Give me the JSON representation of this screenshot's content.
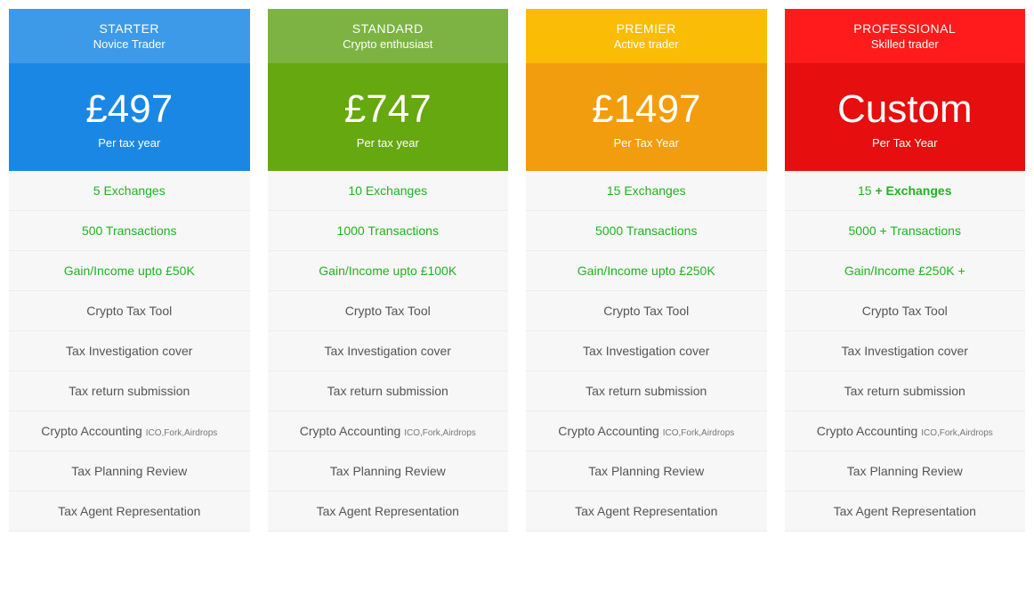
{
  "plans": [
    {
      "key": "starter",
      "title": "STARTER",
      "subtitle": "Novice  Trader",
      "price": "£497",
      "period": "Per tax year",
      "header_bg": "#3d9ae8",
      "price_bg": "#1b87e5",
      "features": [
        {
          "text": "5 Exchanges",
          "highlight": true
        },
        {
          "text": "500 Transactions",
          "highlight": true
        },
        {
          "text": "Gain/Income upto £50K",
          "highlight": true
        },
        {
          "text": "Crypto Tax Tool",
          "highlight": false
        },
        {
          "text": "Tax Investigation cover",
          "highlight": false
        },
        {
          "text": "Tax return submission",
          "highlight": false
        },
        {
          "text": "Crypto Accounting ",
          "sub": "ICO,Fork,Airdrops",
          "highlight": false
        },
        {
          "text": "Tax Planning Review",
          "highlight": false
        },
        {
          "text": "Tax Agent Representation",
          "highlight": false
        }
      ]
    },
    {
      "key": "standard",
      "title": "STANDARD",
      "subtitle": "Crypto enthusiast",
      "price": "£747",
      "period": "Per tax year",
      "header_bg": "#7cb342",
      "price_bg": "#66a80f",
      "features": [
        {
          "text": "10 Exchanges",
          "highlight": true
        },
        {
          "text": "1000 Transactions",
          "highlight": true
        },
        {
          "text": "Gain/Income upto £100K",
          "highlight": true
        },
        {
          "text": "Crypto Tax Tool",
          "highlight": false
        },
        {
          "text": "Tax Investigation cover",
          "highlight": false
        },
        {
          "text": "Tax return submission",
          "highlight": false
        },
        {
          "text": "Crypto Accounting ",
          "sub": "ICO,Fork,Airdrops",
          "highlight": false
        },
        {
          "text": "Tax Planning Review",
          "highlight": false
        },
        {
          "text": "Tax Agent Representation",
          "highlight": false
        }
      ]
    },
    {
      "key": "premier",
      "title": "PREMIER",
      "subtitle": "Active trader",
      "price": "£1497",
      "period": "Per Tax Year",
      "header_bg": "#fbbc05",
      "price_bg": "#f29d0d",
      "features": [
        {
          "text": "15 Exchanges",
          "highlight": true
        },
        {
          "text": "5000 Transactions",
          "highlight": true
        },
        {
          "text": "Gain/Income upto £250K",
          "highlight": true
        },
        {
          "text": "Crypto Tax Tool",
          "highlight": false
        },
        {
          "text": "Tax Investigation cover",
          "highlight": false
        },
        {
          "text": "Tax return submission",
          "highlight": false
        },
        {
          "text": "Crypto Accounting ",
          "sub": "ICO,Fork,Airdrops",
          "highlight": false
        },
        {
          "text": "Tax Planning Review",
          "highlight": false
        },
        {
          "text": "Tax Agent Representation",
          "highlight": false
        }
      ]
    },
    {
      "key": "professional",
      "title": "PROFESSIONAL",
      "subtitle": "Skilled trader",
      "price": "Custom",
      "period": "Per Tax Year",
      "header_bg": "#ff1b1b",
      "price_bg": "#e60e0e",
      "features": [
        {
          "text": "15 ",
          "bold_suffix": "+ Exchanges",
          "highlight": true
        },
        {
          "text": "5000 + Transactions",
          "highlight": true
        },
        {
          "text": "Gain/Income £250K +",
          "highlight": true
        },
        {
          "text": "Crypto Tax Tool",
          "highlight": false
        },
        {
          "text": "Tax Investigation cover",
          "highlight": false
        },
        {
          "text": "Tax return submission",
          "highlight": false
        },
        {
          "text": "Crypto Accounting ",
          "sub": "ICO,Fork,Airdrops",
          "highlight": false
        },
        {
          "text": "Tax Planning Review",
          "highlight": false
        },
        {
          "text": "Tax Agent Representation",
          "highlight": false
        }
      ]
    }
  ]
}
